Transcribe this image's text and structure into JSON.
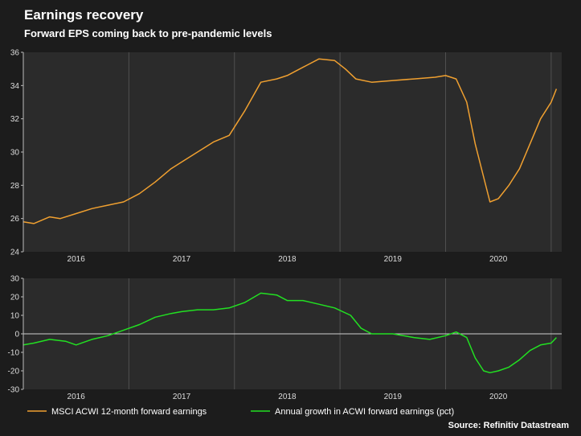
{
  "title": "Earnings recovery",
  "subtitle": "Forward EPS coming back to pre-pandemic levels",
  "source": "Source: Refinitiv Datastream",
  "colors": {
    "eps": "#f0a030",
    "growth": "#22e022",
    "background": "#1c1c1c",
    "panel": "#2b2b2b"
  },
  "chart_data": [
    {
      "type": "line",
      "name": "eps-panel",
      "x_categories": [
        "2016",
        "2017",
        "2018",
        "2019",
        "2020"
      ],
      "ylim": [
        24,
        36
      ],
      "yticks": [
        24,
        26,
        28,
        30,
        32,
        34,
        36
      ],
      "grid": true,
      "series": [
        {
          "name": "MSCI ACWI 12-month forward earnings",
          "x": [
            2015.5,
            2015.6,
            2015.75,
            2015.85,
            2016.0,
            2016.15,
            2016.3,
            2016.45,
            2016.6,
            2016.75,
            2016.9,
            2017.0,
            2017.15,
            2017.3,
            2017.45,
            2017.6,
            2017.75,
            2017.9,
            2018.0,
            2018.15,
            2018.3,
            2018.45,
            2018.55,
            2018.65,
            2018.8,
            2019.0,
            2019.2,
            2019.4,
            2019.5,
            2019.6,
            2019.7,
            2019.78,
            2019.86,
            2019.92,
            2020.0,
            2020.1,
            2020.2,
            2020.3,
            2020.4,
            2020.5,
            2020.55
          ],
          "y": [
            25.8,
            25.7,
            26.1,
            26.0,
            26.3,
            26.6,
            26.8,
            27.0,
            27.5,
            28.2,
            29.0,
            29.4,
            30.0,
            30.6,
            31.0,
            32.5,
            34.2,
            34.4,
            34.6,
            35.1,
            35.6,
            35.5,
            35.0,
            34.4,
            34.2,
            34.3,
            34.4,
            34.5,
            34.6,
            34.4,
            33.0,
            30.5,
            28.5,
            27.0,
            27.2,
            28.0,
            29.0,
            30.5,
            32.0,
            33.0,
            33.8
          ]
        }
      ]
    },
    {
      "type": "line",
      "name": "growth-panel",
      "x_categories": [
        "2016",
        "2017",
        "2018",
        "2019",
        "2020"
      ],
      "ylim": [
        -30,
        30
      ],
      "yticks": [
        -30,
        -20,
        -10,
        0,
        10,
        20,
        30
      ],
      "grid": true,
      "series": [
        {
          "name": "Annual growth in ACWI forward earnings (pct)",
          "x": [
            2015.5,
            2015.6,
            2015.75,
            2015.9,
            2016.0,
            2016.15,
            2016.3,
            2016.45,
            2016.6,
            2016.75,
            2016.9,
            2017.0,
            2017.15,
            2017.3,
            2017.45,
            2017.6,
            2017.75,
            2017.9,
            2018.0,
            2018.15,
            2018.3,
            2018.45,
            2018.6,
            2018.7,
            2018.8,
            2019.0,
            2019.2,
            2019.35,
            2019.5,
            2019.6,
            2019.7,
            2019.78,
            2019.86,
            2019.92,
            2020.0,
            2020.1,
            2020.2,
            2020.3,
            2020.4,
            2020.5,
            2020.55
          ],
          "y": [
            -6,
            -5,
            -3,
            -4,
            -6,
            -3,
            -1,
            2,
            5,
            9,
            11,
            12,
            13,
            13,
            14,
            17,
            22,
            21,
            18,
            18,
            16,
            14,
            10,
            3,
            0,
            0,
            -2,
            -3,
            -1,
            1,
            -2,
            -13,
            -20,
            -21,
            -20,
            -18,
            -14,
            -9,
            -6,
            -5,
            -2
          ]
        }
      ]
    }
  ]
}
